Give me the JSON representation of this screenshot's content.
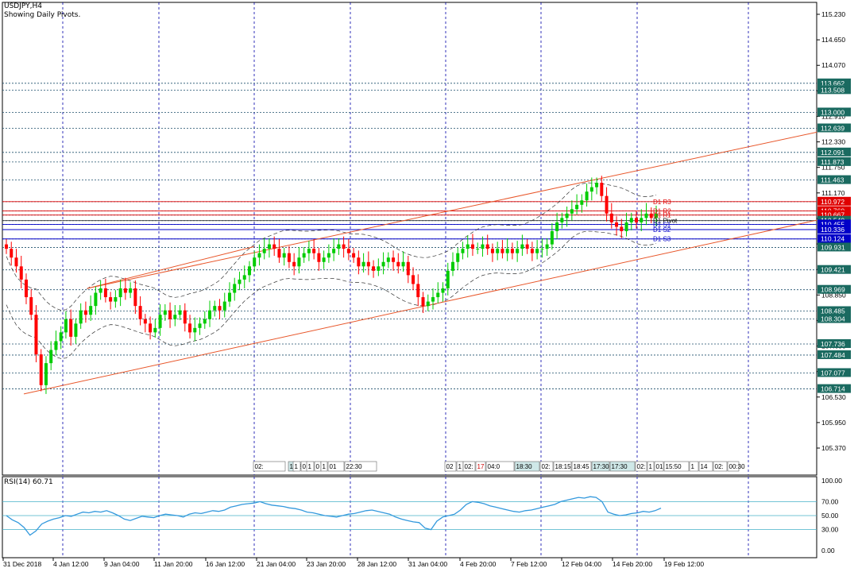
{
  "header": {
    "symbol": "USDJPY,H4",
    "subtitle": "Showing Daily Pivots."
  },
  "indicator": {
    "label": "RSI(14) 60.71",
    "value": 60.71,
    "levels": [
      70,
      50,
      30
    ],
    "scale_labels": [
      "100.00",
      "70.00",
      "50.00",
      "30.00",
      "0.00"
    ]
  },
  "colors": {
    "background": "#ffffff",
    "bull_candle": "#00cc00",
    "bear_candle": "#ff0000",
    "channel_line": "#e8562a",
    "grid": "#0000aa",
    "level_line": "#1c4f6b",
    "rsi_line": "#3399dd",
    "resistance": "#e00000",
    "support": "#0000c8",
    "price_tag": "#1a6a60"
  },
  "price_axis": {
    "ticks": [
      "115.230",
      "114.650",
      "114.070",
      "113.490",
      "112.910",
      "112.330",
      "111.750",
      "111.170",
      "110.590",
      "110.010",
      "109.430",
      "108.850",
      "108.270",
      "107.690",
      "107.110",
      "106.530",
      "105.950",
      "105.370"
    ],
    "tags": [
      {
        "price": 113.662,
        "label": "113.662",
        "color": "#1a6a60"
      },
      {
        "price": 113.508,
        "label": "113.508",
        "color": "#1a6a60"
      },
      {
        "price": 113.0,
        "label": "113.000",
        "color": "#1a6a60"
      },
      {
        "price": 112.639,
        "label": "112.639",
        "color": "#1a6a60"
      },
      {
        "price": 112.091,
        "label": "112.091",
        "color": "#1a6a60"
      },
      {
        "price": 111.873,
        "label": "111.873",
        "color": "#1a6a60"
      },
      {
        "price": 111.463,
        "label": "111.463",
        "color": "#1a6a60"
      },
      {
        "price": 110.972,
        "label": "110.972",
        "color": "#e00000"
      },
      {
        "price": 110.76,
        "label": "110.760",
        "color": "#e00000"
      },
      {
        "price": 110.667,
        "label": "110.667",
        "color": "#e00000"
      },
      {
        "price": 110.54,
        "label": "110.540",
        "color": "#1a6a60"
      },
      {
        "price": 110.455,
        "label": "110.455",
        "color": "#0000c8"
      },
      {
        "price": 110.336,
        "label": "110.336",
        "color": "#0000c8"
      },
      {
        "price": 110.124,
        "label": "110.124",
        "color": "#0000c8"
      },
      {
        "price": 109.931,
        "label": "109.931",
        "color": "#1a6a60"
      },
      {
        "price": 109.421,
        "label": "109.421",
        "color": "#1a6a60"
      },
      {
        "price": 108.969,
        "label": "108.969",
        "color": "#1a6a60"
      },
      {
        "price": 108.485,
        "label": "108.485",
        "color": "#1a6a60"
      },
      {
        "price": 108.304,
        "label": "108.304",
        "color": "#1a6a60"
      },
      {
        "price": 107.736,
        "label": "107.736",
        "color": "#1a6a60"
      },
      {
        "price": 107.484,
        "label": "107.484",
        "color": "#1a6a60"
      },
      {
        "price": 107.077,
        "label": "107.077",
        "color": "#1a6a60"
      },
      {
        "price": 106.714,
        "label": "106.714",
        "color": "#1a6a60"
      }
    ]
  },
  "pivots": [
    {
      "label": "D1 R3",
      "price": 110.972,
      "color": "#e00000"
    },
    {
      "label": "D1 R2",
      "price": 110.76,
      "color": "#e00000"
    },
    {
      "label": "D1 R1",
      "price": 110.667,
      "color": "#e00000"
    },
    {
      "label": "D1 Pivot",
      "price": 110.54,
      "color": "#000000"
    },
    {
      "label": "D1 S1",
      "price": 110.455,
      "color": "#0000c8"
    },
    {
      "label": "D1 S2",
      "price": 110.336,
      "color": "#0000c8"
    },
    {
      "label": "D1 S3",
      "price": 110.124,
      "color": "#0000c8"
    }
  ],
  "time_axis": {
    "labels": [
      "31 Dec 2018",
      "4 Jan 12:00",
      "9 Jan 04:00",
      "11 Jan 20:00",
      "16 Jan 12:00",
      "21 Jan 04:00",
      "23 Jan 20:00",
      "28 Jan 12:00",
      "31 Jan 04:00",
      "4 Feb 20:00",
      "7 Feb 12:00",
      "12 Feb 04:00",
      "14 Feb 20:00",
      "19 Feb 12:00"
    ]
  },
  "session_labels": [
    "02:",
    "18:30",
    "1",
    "0",
    "1",
    "0",
    "1",
    "01",
    "22:30",
    "02",
    "1",
    "02:",
    "17",
    "04:0",
    "18:30",
    "02:",
    "18:15",
    "18:45",
    "17:30",
    "17:30",
    "02:",
    "1",
    "01",
    "15:50",
    "1",
    "14",
    "02:",
    "00:30"
  ],
  "chart_data": {
    "type": "candlestick",
    "symbol": "USDJPY",
    "timeframe": "H4",
    "ylim": [
      105.0,
      115.5
    ],
    "close": [
      109.9,
      109.7,
      109.5,
      109.2,
      108.8,
      108.4,
      107.5,
      106.8,
      107.3,
      107.6,
      107.8,
      108.0,
      108.3,
      107.9,
      108.2,
      108.5,
      108.4,
      108.6,
      108.9,
      109.0,
      108.8,
      108.7,
      108.8,
      109.0,
      108.9,
      109.0,
      108.6,
      108.3,
      108.2,
      108.0,
      108.1,
      108.4,
      108.5,
      108.3,
      108.4,
      108.5,
      108.2,
      108.0,
      108.1,
      108.2,
      108.3,
      108.5,
      108.6,
      108.5,
      108.7,
      108.9,
      109.1,
      109.2,
      109.3,
      109.5,
      109.7,
      109.8,
      109.9,
      110.0,
      109.9,
      109.7,
      109.8,
      109.6,
      109.5,
      109.7,
      109.8,
      109.9,
      109.8,
      109.6,
      109.7,
      109.8,
      109.9,
      110.0,
      109.9,
      109.8,
      109.7,
      109.5,
      109.6,
      109.5,
      109.4,
      109.5,
      109.6,
      109.7,
      109.6,
      109.5,
      109.6,
      109.3,
      109.1,
      108.8,
      108.6,
      108.7,
      108.8,
      108.9,
      109.0,
      109.4,
      109.6,
      109.8,
      109.9,
      110.0,
      109.9,
      109.9,
      110.0,
      109.9,
      109.8,
      109.9,
      109.8,
      109.9,
      109.8,
      109.9,
      110.0,
      109.9,
      109.8,
      109.9,
      109.9,
      110.0,
      110.3,
      110.5,
      110.6,
      110.7,
      110.8,
      110.9,
      111.0,
      111.2,
      111.3,
      111.4,
      111.1,
      110.7,
      110.5,
      110.4,
      110.3,
      110.5,
      110.6,
      110.5,
      110.6,
      110.7,
      110.6,
      110.7
    ],
    "channel": {
      "upper": {
        "from": {
          "x": "4 Jan 12:00",
          "y": 108.9
        },
        "to": {
          "x": "19 Feb 12:00",
          "y": 112.3
        }
      },
      "lower": {
        "from": {
          "x": "31 Dec 2018",
          "y": 106.7
        },
        "to": {
          "x": "19 Feb 12:00",
          "y": 110.6
        }
      }
    },
    "rsi_14": {
      "values": [
        50,
        44,
        40,
        33,
        22,
        28,
        38,
        42,
        45,
        47,
        50,
        49,
        52,
        55,
        54,
        56,
        55,
        57,
        54,
        50,
        45,
        43,
        46,
        49,
        48,
        47,
        50,
        52,
        51,
        50,
        48,
        52,
        54,
        53,
        55,
        57,
        56,
        58,
        62,
        64,
        66,
        67,
        68,
        70,
        67,
        65,
        64,
        63,
        61,
        60,
        58,
        55,
        54,
        52,
        50,
        49,
        48,
        50,
        52,
        53,
        55,
        57,
        58,
        56,
        54,
        52,
        48,
        45,
        43,
        41,
        40,
        32,
        30,
        42,
        48,
        50,
        52,
        58,
        66,
        70,
        69,
        67,
        64,
        62,
        60,
        58,
        56,
        55,
        57,
        58,
        60,
        62,
        64,
        66,
        70,
        72,
        74,
        76,
        75,
        77,
        76,
        70,
        55,
        52,
        50,
        51,
        53,
        54,
        56,
        55,
        57,
        60.71
      ]
    }
  }
}
